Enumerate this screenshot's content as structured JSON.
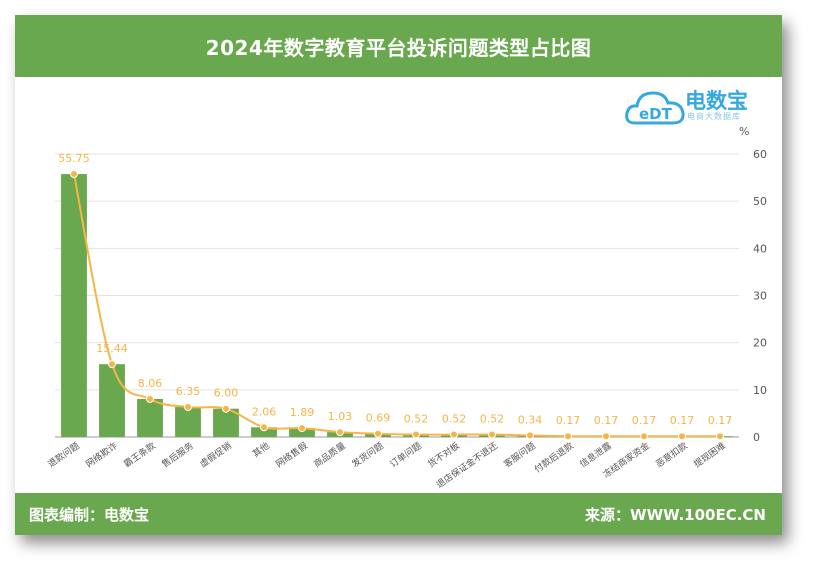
{
  "header": {
    "title": "2024年数字教育平台投诉问题类型占比图"
  },
  "footer": {
    "left": "图表编制：电数宝",
    "right": "来源：WWW.100EC.CN"
  },
  "logo": {
    "name": "电数宝",
    "abbr": "eDT",
    "subtitle": "电商大数据库"
  },
  "colors": {
    "bar": "#6aa84f",
    "line": "#f6b545",
    "header": "#6aa84f"
  },
  "chart_data": {
    "type": "bar",
    "unit": "%",
    "categories": [
      "退款问题",
      "网络欺诈",
      "霸王条款",
      "售后服务",
      "虚假促销",
      "其他",
      "网络售假",
      "商品质量",
      "发货问题",
      "订单问题",
      "货不对板",
      "退店保证金不退还",
      "客服问题",
      "付款后退款",
      "信息泄露",
      "冻结商家资金",
      "恶意扣款",
      "提现困难"
    ],
    "values": [
      55.75,
      15.44,
      8.06,
      6.35,
      6.0,
      2.06,
      1.89,
      1.03,
      0.69,
      0.52,
      0.52,
      0.52,
      0.34,
      0.17,
      0.17,
      0.17,
      0.17,
      0.17
    ],
    "value_labels": [
      "55.75",
      "15.44",
      "8.06",
      "6.35",
      "6.00",
      "2.06",
      "1.89",
      "1.03",
      "0.69",
      "0.52",
      "0.52",
      "0.52",
      "0.34",
      "0.17",
      "0.17",
      "0.17",
      "0.17",
      "0.17"
    ],
    "ylim": [
      0,
      60
    ],
    "yticks": [
      0,
      10,
      20,
      30,
      40,
      50,
      60
    ],
    "ylabel_position": "right",
    "grid": true,
    "overlay": "smoothed line with markers over bars"
  }
}
